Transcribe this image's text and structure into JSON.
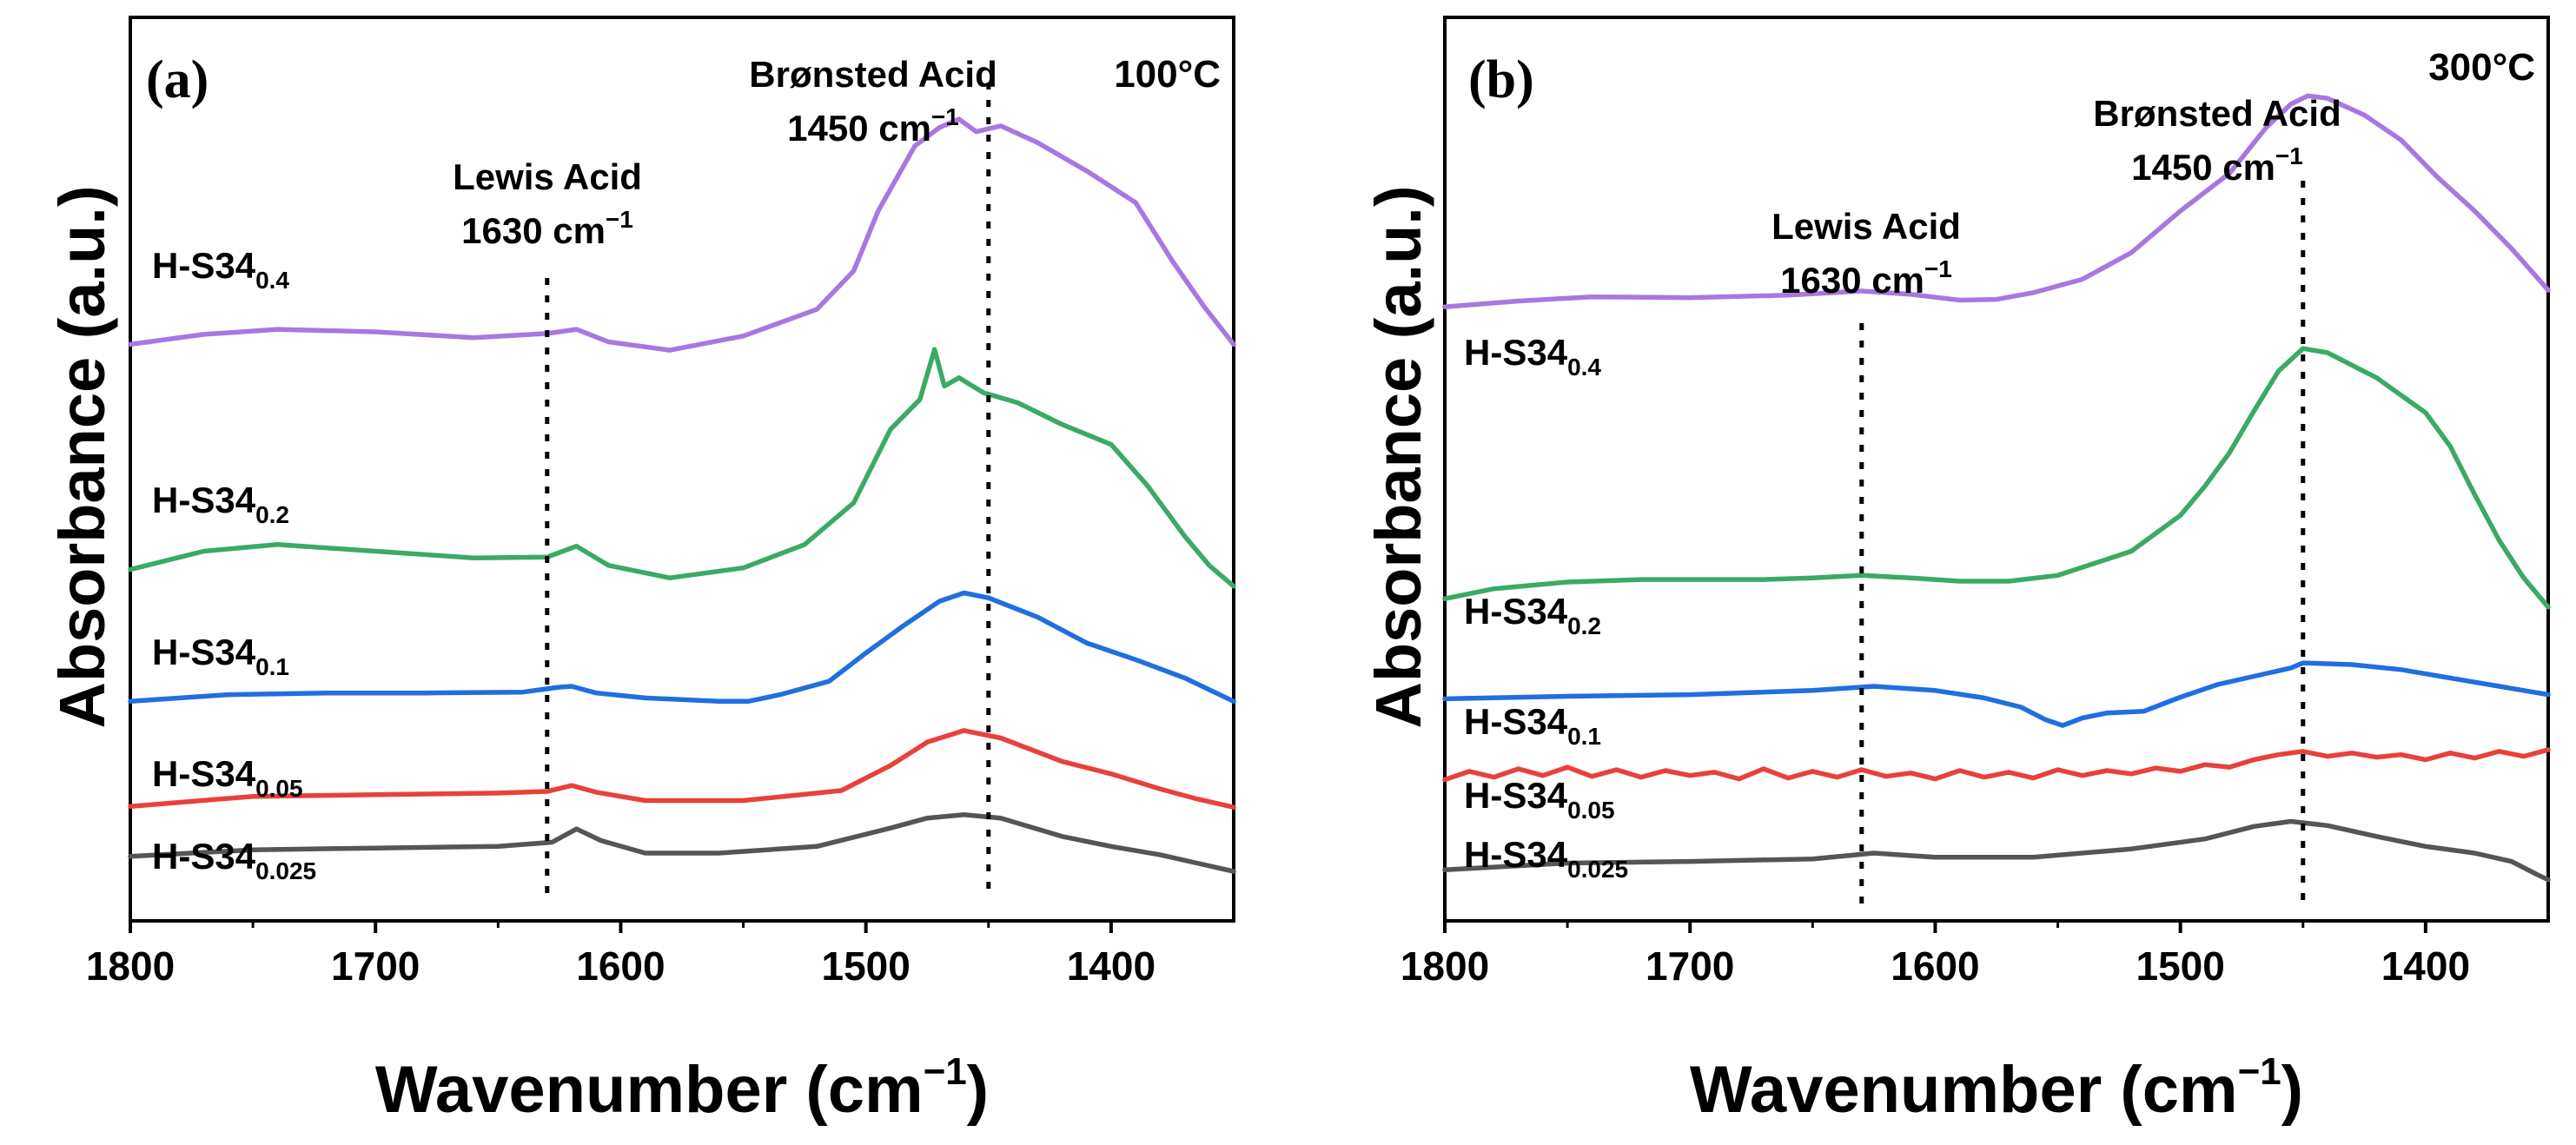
{
  "chart_data": [
    {
      "type": "line",
      "panel": "(a)",
      "temperature": "100°C",
      "xlabel": "Wavenumber (cm",
      "xlabel_sup": "−1",
      "xlabel_end": ")",
      "ylabel": "Absorbance (a.u.)",
      "xlim": [
        1800,
        1350
      ],
      "ylim": [
        0,
        1
      ],
      "grid": false,
      "x_ticks": [
        "1800",
        "1700",
        "1600",
        "1500",
        "1400"
      ],
      "x_tick_values": [
        1800,
        1700,
        1600,
        1500,
        1400
      ],
      "annotations": [
        {
          "line1": "Lewis Acid",
          "line2": "1630 cm",
          "sup": "−1",
          "x": 1630
        },
        {
          "line1": "Brønsted Acid",
          "line2": "1450 cm",
          "sup": "−1",
          "x": 1450
        }
      ],
      "series": [
        {
          "name": "H-S34",
          "sub": "0.025",
          "color": "#555555",
          "x": [
            1800,
            1750,
            1700,
            1650,
            1628,
            1618,
            1608,
            1590,
            1560,
            1520,
            1490,
            1475,
            1460,
            1445,
            1420,
            1400,
            1380,
            1365,
            1350
          ],
          "y": [
            0.046,
            0.054,
            0.056,
            0.058,
            0.063,
            0.079,
            0.065,
            0.05,
            0.05,
            0.058,
            0.08,
            0.092,
            0.096,
            0.092,
            0.07,
            0.058,
            0.048,
            0.038,
            0.028
          ]
        },
        {
          "name": "H-S34",
          "sub": "0.05",
          "color": "#e8413b",
          "x": [
            1800,
            1750,
            1700,
            1650,
            1630,
            1620,
            1610,
            1590,
            1550,
            1510,
            1490,
            1475,
            1460,
            1445,
            1420,
            1400,
            1380,
            1365,
            1350
          ],
          "y": [
            0.106,
            0.118,
            0.12,
            0.122,
            0.124,
            0.131,
            0.123,
            0.113,
            0.113,
            0.125,
            0.155,
            0.183,
            0.197,
            0.188,
            0.16,
            0.145,
            0.127,
            0.115,
            0.105
          ]
        },
        {
          "name": "H-S34",
          "sub": "0.1",
          "color": "#1f6fe0",
          "x": [
            1800,
            1760,
            1720,
            1680,
            1640,
            1625,
            1620,
            1610,
            1590,
            1560,
            1548,
            1535,
            1515,
            1500,
            1485,
            1470,
            1460,
            1450,
            1430,
            1410,
            1390,
            1370,
            1350
          ],
          "y": [
            0.232,
            0.24,
            0.242,
            0.242,
            0.243,
            0.249,
            0.25,
            0.242,
            0.236,
            0.232,
            0.232,
            0.24,
            0.256,
            0.29,
            0.322,
            0.352,
            0.362,
            0.356,
            0.333,
            0.302,
            0.282,
            0.26,
            0.232
          ]
        },
        {
          "name": "H-S34",
          "sub": "0.2",
          "color": "#3aaa64",
          "x": [
            1800,
            1770,
            1740,
            1700,
            1660,
            1630,
            1618,
            1605,
            1580,
            1550,
            1525,
            1505,
            1490,
            1478,
            1472,
            1468,
            1462,
            1452,
            1438,
            1420,
            1400,
            1385,
            1370,
            1360,
            1350
          ],
          "y": [
            0.39,
            0.412,
            0.42,
            0.412,
            0.404,
            0.405,
            0.418,
            0.395,
            0.38,
            0.392,
            0.42,
            0.47,
            0.558,
            0.594,
            0.654,
            0.61,
            0.62,
            0.602,
            0.59,
            0.564,
            0.54,
            0.49,
            0.43,
            0.395,
            0.37
          ]
        },
        {
          "name": "H-S34",
          "sub": "0.4",
          "color": "#a778e0",
          "x": [
            1800,
            1770,
            1740,
            1700,
            1660,
            1630,
            1618,
            1605,
            1580,
            1550,
            1520,
            1505,
            1495,
            1480,
            1470,
            1462,
            1455,
            1445,
            1430,
            1410,
            1390,
            1375,
            1362,
            1350
          ],
          "y": [
            0.66,
            0.672,
            0.678,
            0.675,
            0.668,
            0.673,
            0.678,
            0.663,
            0.653,
            0.67,
            0.702,
            0.748,
            0.82,
            0.898,
            0.92,
            0.93,
            0.915,
            0.922,
            0.902,
            0.868,
            0.83,
            0.76,
            0.705,
            0.66
          ]
        }
      ]
    },
    {
      "type": "line",
      "panel": "(b)",
      "temperature": "300°C",
      "xlabel": "Wavenumber (cm",
      "xlabel_sup": "−1",
      "xlabel_end": ")",
      "ylabel": "Absorbance (a.u.)",
      "xlim": [
        1800,
        1350
      ],
      "ylim": [
        0,
        1
      ],
      "grid": false,
      "x_ticks": [
        "1800",
        "1700",
        "1600",
        "1500",
        "1400"
      ],
      "x_tick_values": [
        1800,
        1700,
        1600,
        1500,
        1400
      ],
      "annotations": [
        {
          "line1": "Lewis Acid",
          "line2": "1630 cm",
          "sup": "−1",
          "x": 1630
        },
        {
          "line1": "Brønsted Acid",
          "line2": "1450 cm",
          "sup": "−1",
          "x": 1450
        }
      ],
      "series": [
        {
          "name": "H-S34",
          "sub": "0.025",
          "color": "#555555",
          "x": [
            1800,
            1750,
            1700,
            1650,
            1625,
            1600,
            1560,
            1520,
            1490,
            1470,
            1455,
            1440,
            1420,
            1400,
            1380,
            1365,
            1355,
            1350
          ],
          "y": [
            0.03,
            0.038,
            0.04,
            0.043,
            0.05,
            0.045,
            0.045,
            0.055,
            0.067,
            0.082,
            0.088,
            0.083,
            0.07,
            0.058,
            0.05,
            0.04,
            0.025,
            0.018
          ]
        },
        {
          "name": "H-S34",
          "sub": "0.05",
          "color": "#e8413b",
          "x": [
            1800,
            1790,
            1780,
            1770,
            1760,
            1750,
            1740,
            1730,
            1720,
            1710,
            1700,
            1690,
            1680,
            1670,
            1660,
            1650,
            1640,
            1630,
            1620,
            1610,
            1600,
            1590,
            1580,
            1570,
            1560,
            1550,
            1540,
            1530,
            1520,
            1510,
            1500,
            1490,
            1480,
            1470,
            1460,
            1450,
            1440,
            1430,
            1420,
            1410,
            1400,
            1390,
            1380,
            1370,
            1360,
            1350
          ],
          "y": [
            0.138,
            0.148,
            0.141,
            0.151,
            0.143,
            0.153,
            0.142,
            0.15,
            0.141,
            0.149,
            0.143,
            0.147,
            0.139,
            0.151,
            0.14,
            0.148,
            0.141,
            0.15,
            0.142,
            0.146,
            0.139,
            0.149,
            0.141,
            0.147,
            0.14,
            0.15,
            0.143,
            0.149,
            0.145,
            0.152,
            0.148,
            0.156,
            0.153,
            0.162,
            0.168,
            0.172,
            0.166,
            0.17,
            0.165,
            0.168,
            0.162,
            0.17,
            0.164,
            0.172,
            0.166,
            0.174
          ]
        },
        {
          "name": "H-S34",
          "sub": "0.1",
          "color": "#1f6fe0",
          "x": [
            1800,
            1750,
            1700,
            1650,
            1625,
            1600,
            1580,
            1565,
            1555,
            1548,
            1540,
            1530,
            1515,
            1500,
            1485,
            1470,
            1455,
            1450,
            1430,
            1410,
            1390,
            1370,
            1350
          ],
          "y": [
            0.235,
            0.238,
            0.24,
            0.245,
            0.25,
            0.245,
            0.236,
            0.225,
            0.21,
            0.203,
            0.212,
            0.218,
            0.22,
            0.237,
            0.252,
            0.262,
            0.272,
            0.278,
            0.276,
            0.27,
            0.26,
            0.25,
            0.24
          ]
        },
        {
          "name": "H-S34",
          "sub": "0.2",
          "color": "#3aaa64",
          "x": [
            1800,
            1780,
            1750,
            1720,
            1700,
            1670,
            1650,
            1630,
            1610,
            1590,
            1570,
            1550,
            1520,
            1500,
            1490,
            1480,
            1470,
            1460,
            1450,
            1440,
            1420,
            1400,
            1390,
            1380,
            1370,
            1360,
            1350
          ],
          "y": [
            0.355,
            0.367,
            0.375,
            0.378,
            0.378,
            0.378,
            0.38,
            0.383,
            0.38,
            0.376,
            0.376,
            0.383,
            0.412,
            0.455,
            0.49,
            0.53,
            0.58,
            0.628,
            0.655,
            0.65,
            0.62,
            0.578,
            0.538,
            0.48,
            0.425,
            0.38,
            0.345
          ]
        },
        {
          "name": "H-S34",
          "sub": "0.4",
          "color": "#a778e0",
          "x": [
            1800,
            1770,
            1740,
            1700,
            1660,
            1630,
            1610,
            1590,
            1575,
            1560,
            1540,
            1520,
            1500,
            1480,
            1465,
            1455,
            1448,
            1440,
            1425,
            1410,
            1395,
            1380,
            1365,
            1350
          ],
          "y": [
            0.705,
            0.712,
            0.717,
            0.716,
            0.719,
            0.724,
            0.72,
            0.713,
            0.714,
            0.722,
            0.738,
            0.77,
            0.82,
            0.865,
            0.92,
            0.948,
            0.958,
            0.955,
            0.935,
            0.905,
            0.86,
            0.82,
            0.775,
            0.725
          ]
        }
      ]
    }
  ]
}
